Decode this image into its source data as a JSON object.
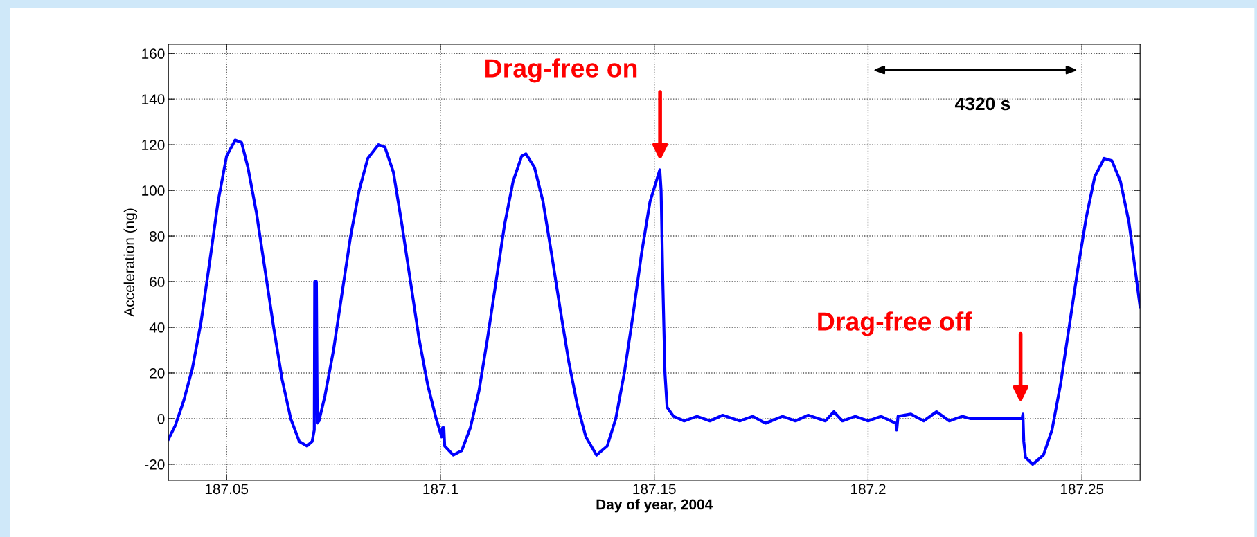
{
  "chart_data": {
    "type": "line",
    "xlabel": "Day of year, 2004",
    "ylabel": "Acceleration (ng)",
    "xlim": [
      187.0364,
      187.2636
    ],
    "ylim": [
      -27,
      164
    ],
    "xticks": [
      187.05,
      187.1,
      187.15,
      187.2,
      187.25
    ],
    "yticks": [
      -20,
      0,
      20,
      40,
      60,
      80,
      100,
      120,
      140,
      160
    ],
    "grid": true,
    "legend": false,
    "marker": "none",
    "line_style": "solid",
    "annotations": [
      "Drag-free on",
      "Drag-free off",
      "4320 s"
    ],
    "series": [
      {
        "color": "#0000ff",
        "x": [
          187.0364,
          187.038,
          187.04,
          187.042,
          187.044,
          187.046,
          187.048,
          187.05,
          187.052,
          187.0535,
          187.055,
          187.057,
          187.059,
          187.061,
          187.063,
          187.065,
          187.067,
          187.0688,
          187.07,
          187.0705,
          187.0706,
          187.071,
          187.0712,
          187.0716,
          187.073,
          187.075,
          187.077,
          187.079,
          187.081,
          187.083,
          187.0855,
          187.087,
          187.089,
          187.091,
          187.093,
          187.095,
          187.097,
          187.099,
          187.1003,
          187.1005,
          187.1008,
          187.101,
          187.103,
          187.105,
          187.107,
          187.109,
          187.111,
          187.113,
          187.115,
          187.117,
          187.119,
          187.12,
          187.122,
          187.124,
          187.126,
          187.128,
          187.13,
          187.132,
          187.134,
          187.1365,
          187.139,
          187.141,
          187.143,
          187.145,
          187.147,
          187.149,
          187.1513,
          187.1516,
          187.152,
          187.1525,
          187.153,
          187.1545,
          187.157,
          187.16,
          187.163,
          187.166,
          187.17,
          187.173,
          187.176,
          187.18,
          187.183,
          187.186,
          187.19,
          187.192,
          187.194,
          187.197,
          187.2,
          187.203,
          187.2065,
          187.2067,
          187.207,
          187.21,
          187.213,
          187.216,
          187.219,
          187.222,
          187.224,
          187.236,
          187.2362,
          187.2364,
          187.2368,
          187.2385,
          187.241,
          187.243,
          187.245,
          187.247,
          187.249,
          187.251,
          187.253,
          187.2552,
          187.257,
          187.259,
          187.261,
          187.2636
        ],
        "values": [
          -9,
          -3,
          8,
          22,
          42,
          68,
          95,
          115,
          122,
          121,
          110,
          90,
          65,
          40,
          17,
          0,
          -10,
          -12,
          -10,
          -5,
          60,
          60,
          -2,
          -1,
          10,
          30,
          55,
          80,
          100,
          114,
          120,
          119,
          108,
          85,
          60,
          35,
          15,
          0,
          -8,
          -4,
          -4,
          -12,
          -16,
          -14,
          -4,
          12,
          35,
          60,
          85,
          104,
          115,
          116,
          110,
          95,
          72,
          48,
          25,
          6,
          -8,
          -16,
          -12,
          0,
          20,
          45,
          72,
          95,
          109,
          100,
          60,
          20,
          5,
          1,
          -1,
          1,
          -1,
          1.5,
          -1,
          1,
          -2,
          1,
          -1,
          1.5,
          -1,
          3,
          -1,
          1,
          -1,
          1,
          -2,
          -5,
          1,
          2,
          -1,
          3,
          -1,
          1,
          0,
          0,
          2,
          -10,
          -17,
          -20,
          -16,
          -5,
          15,
          40,
          65,
          88,
          106,
          114,
          113,
          104,
          86,
          49
        ]
      }
    ]
  }
}
